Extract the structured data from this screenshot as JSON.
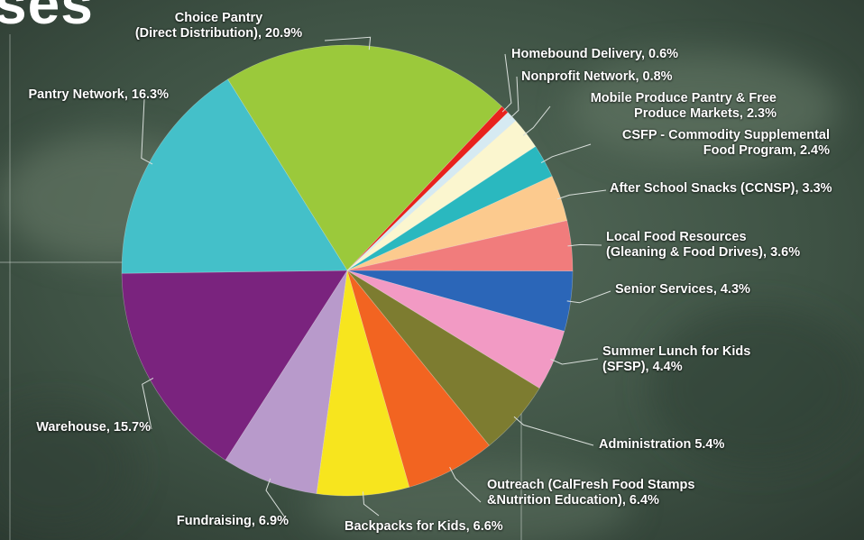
{
  "heading": {
    "fragment": "ses"
  },
  "chart_data": {
    "type": "pie",
    "title": "",
    "slices": [
      {
        "label": [
          "Choice Pantry",
          "(Direct Distribution), 20.9%"
        ],
        "value": 20.9,
        "color": "#9bc93b"
      },
      {
        "label": [
          "Homebound Delivery, 0.6%"
        ],
        "value": 0.6,
        "color": "#e8221d"
      },
      {
        "label": [
          "Nonprofit Network, 0.8%"
        ],
        "value": 0.8,
        "color": "#d6eaf2"
      },
      {
        "label": [
          "Mobile Produce Pantry & Free",
          "Produce Markets, 2.3%"
        ],
        "value": 2.3,
        "color": "#fbf6cf"
      },
      {
        "label": [
          "CSFP - Commodity Supplemental",
          "Food Program, 2.4%"
        ],
        "value": 2.4,
        "color": "#2ab8bf"
      },
      {
        "label": [
          "After School Snacks (CCNSP), 3.3%"
        ],
        "value": 3.3,
        "color": "#fcca8e"
      },
      {
        "label": [
          "Local Food Resources",
          "(Gleaning & Food Drives), 3.6%"
        ],
        "value": 3.6,
        "color": "#f17c7c"
      },
      {
        "label": [
          "Senior Services, 4.3%"
        ],
        "value": 4.3,
        "color": "#2b66b8"
      },
      {
        "label": [
          "Summer Lunch for Kids",
          "(SFSP), 4.4%"
        ],
        "value": 4.4,
        "color": "#f29ac4"
      },
      {
        "label": [
          "Administration 5.4%"
        ],
        "value": 5.4,
        "color": "#7d7c30"
      },
      {
        "label": [
          "Outreach (CalFresh Food Stamps",
          "&Nutrition Education), 6.4%"
        ],
        "value": 6.4,
        "color": "#f26421"
      },
      {
        "label": [
          "Backpacks for Kids, 6.6%"
        ],
        "value": 6.6,
        "color": "#f7e51e"
      },
      {
        "label": [
          "Fundraising, 6.9%"
        ],
        "value": 6.9,
        "color": "#b89acb"
      },
      {
        "label": [
          "Warehouse, 15.7%"
        ],
        "value": 15.7,
        "color": "#7a237e"
      },
      {
        "label": [
          "Pantry Network, 16.3%"
        ],
        "value": 16.3,
        "color": "#44c0c9"
      }
    ]
  }
}
